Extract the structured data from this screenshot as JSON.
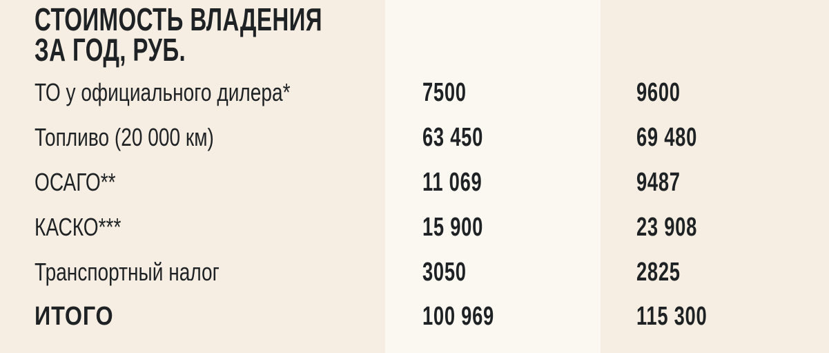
{
  "title": {
    "line1": "СТОИМОСТЬ ВЛАДЕНИЯ",
    "line2": "ЗА ГОД, РУБ."
  },
  "rows": [
    {
      "label": "ТО у официального дилера*",
      "col1": "7500",
      "col2": "9600"
    },
    {
      "label": "Топливо (20 000 км)",
      "col1": "63 450",
      "col2": "69 480"
    },
    {
      "label": "ОСАГО**",
      "col1": "11 069",
      "col2": "9487"
    },
    {
      "label": "КАСКО***",
      "col1": "15 900",
      "col2": "23 908"
    },
    {
      "label": "Транспортный налог",
      "col1": "3050",
      "col2": "2825"
    },
    {
      "label": "ИТОГО",
      "col1": "100 969",
      "col2": "115 300"
    }
  ],
  "colors": {
    "background": "#f6eee2",
    "highlight_column": "#fbf8f1",
    "text": "#1e2224"
  }
}
